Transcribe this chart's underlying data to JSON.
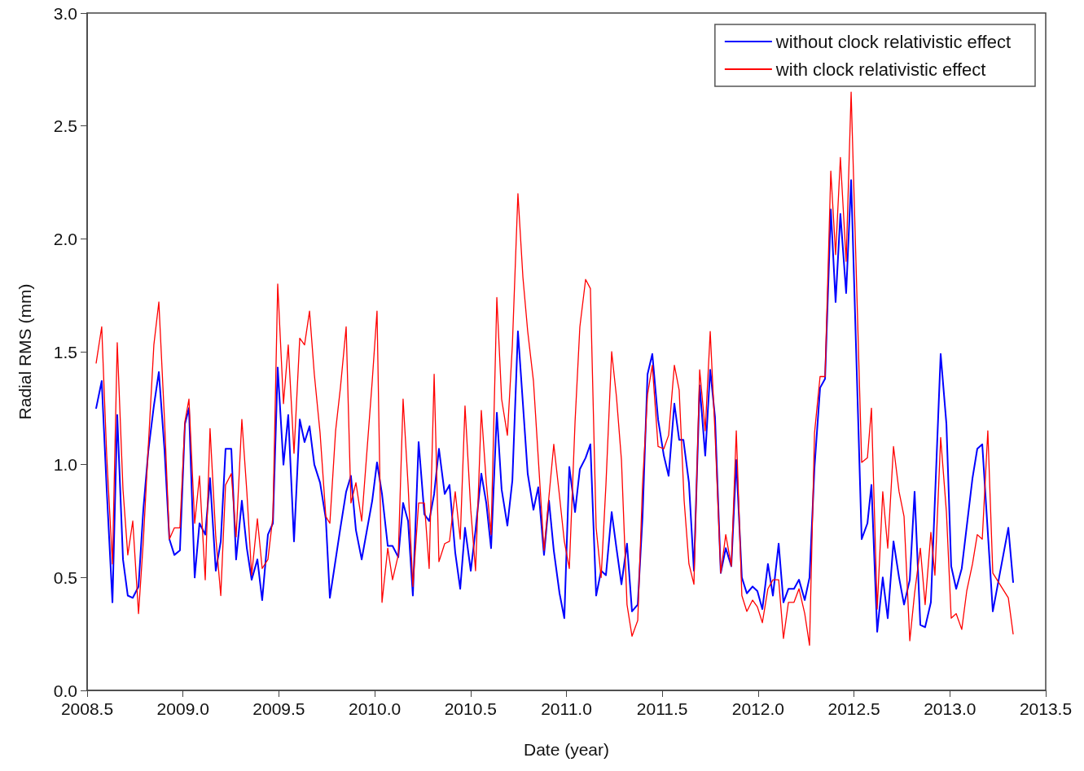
{
  "chart_data": {
    "type": "line",
    "xlabel": "Date (year)",
    "ylabel": "Radial RMS (mm)",
    "xlim": [
      2008.5,
      2013.5
    ],
    "xticks": [
      2008.5,
      {
        "value": 2009,
        "label": "2009.0"
      },
      2009.5,
      {
        "value": 2010,
        "label": "2010.0"
      },
      2010.5,
      {
        "value": 2011,
        "label": "2011.0"
      },
      2011.5,
      {
        "value": 2012,
        "label": "2012.0"
      },
      2012.5,
      {
        "value": 2013,
        "label": "2013.0"
      },
      2013.5
    ],
    "ylim": [
      0,
      3
    ],
    "yticks": [
      {
        "value": 0,
        "label": "0.0"
      },
      0.5,
      {
        "value": 1,
        "label": "1.0"
      },
      1.5,
      {
        "value": 2,
        "label": "2.0"
      },
      2.5,
      {
        "value": 3,
        "label": "3.0"
      }
    ],
    "grid": false,
    "legend": "top right",
    "marker": "none",
    "line_style": "solid",
    "series": [
      {
        "name": "without clock relativistic effect",
        "color": "#0000ff",
        "x": [
          2008.547,
          2008.576,
          2008.602,
          2008.632,
          2008.657,
          2008.687,
          2008.712,
          2008.738,
          2008.768,
          2008.793,
          2008.819,
          2008.848,
          2008.874,
          2008.904,
          2008.929,
          2008.955,
          2008.984,
          2009.01,
          2009.031,
          2009.061,
          2009.086,
          2009.116,
          2009.141,
          2009.171,
          2009.197,
          2009.222,
          2009.252,
          2009.277,
          2009.307,
          2009.333,
          2009.358,
          2009.388,
          2009.413,
          2009.443,
          2009.469,
          2009.494,
          2009.524,
          2009.549,
          2009.579,
          2009.609,
          2009.634,
          2009.66,
          2009.685,
          2009.715,
          2009.745,
          2009.766,
          2009.821,
          2009.851,
          2009.876,
          2009.902,
          2009.932,
          2009.987,
          2010.012,
          2010.038,
          2010.068,
          2010.093,
          2010.123,
          2010.148,
          2010.174,
          2010.199,
          2010.229,
          2010.259,
          2010.284,
          2010.31,
          2010.335,
          2010.365,
          2010.39,
          2010.42,
          2010.446,
          2010.471,
          2010.501,
          2010.526,
          2010.556,
          2010.582,
          2010.607,
          2010.637,
          2010.662,
          2010.692,
          2010.718,
          2010.747,
          2010.773,
          2010.798,
          2010.828,
          2010.853,
          2010.883,
          2010.909,
          2010.934,
          2010.964,
          2010.989,
          2011.015,
          2011.045,
          2011.07,
          2011.1,
          2011.125,
          2011.155,
          2011.181,
          2011.206,
          2011.236,
          2011.261,
          2011.287,
          2011.316,
          2011.342,
          2011.372,
          2011.397,
          2011.423,
          2011.448,
          2011.478,
          2011.508,
          2011.533,
          2011.563,
          2011.588,
          2011.61,
          2011.639,
          2011.665,
          2011.695,
          2011.724,
          2011.75,
          2011.775,
          2011.805,
          2011.831,
          2011.86,
          2011.886,
          2011.915,
          2011.941,
          2011.971,
          2011.996,
          2012.022,
          2012.051,
          2012.077,
          2012.107,
          2012.132,
          2012.158,
          2012.187,
          2012.213,
          2012.243,
          2012.268,
          2012.294,
          2012.323,
          2012.349,
          2012.379,
          2012.404,
          2012.429,
          2012.459,
          2012.485,
          2012.54,
          2012.57,
          2012.591,
          2012.621,
          2012.65,
          2012.676,
          2012.706,
          2012.735,
          2012.761,
          2012.791,
          2012.816,
          2012.846,
          2012.871,
          2012.901,
          2012.952,
          2012.982,
          2013.007,
          2013.033,
          2013.062,
          2013.118,
          2013.143,
          2013.169,
          2013.224,
          2013.305,
          2013.33
        ],
        "values": [
          1.25,
          1.37,
          0.89,
          0.39,
          1.22,
          0.58,
          0.42,
          0.41,
          0.46,
          0.8,
          1.06,
          1.26,
          1.41,
          1.06,
          0.67,
          0.6,
          0.62,
          1.18,
          1.25,
          0.5,
          0.74,
          0.69,
          0.94,
          0.53,
          0.66,
          1.07,
          1.07,
          0.58,
          0.84,
          0.63,
          0.49,
          0.58,
          0.4,
          0.69,
          0.74,
          1.43,
          1.0,
          1.22,
          0.66,
          1.2,
          1.1,
          1.17,
          1.0,
          0.92,
          0.76,
          0.41,
          0.72,
          0.88,
          0.95,
          0.71,
          0.58,
          0.84,
          1.01,
          0.87,
          0.64,
          0.64,
          0.59,
          0.83,
          0.75,
          0.42,
          1.1,
          0.78,
          0.75,
          0.87,
          1.07,
          0.87,
          0.91,
          0.61,
          0.45,
          0.72,
          0.53,
          0.71,
          0.96,
          0.83,
          0.63,
          1.23,
          0.89,
          0.73,
          0.93,
          1.59,
          1.27,
          0.96,
          0.8,
          0.9,
          0.6,
          0.84,
          0.62,
          0.43,
          0.32,
          0.99,
          0.79,
          0.98,
          1.03,
          1.09,
          0.42,
          0.53,
          0.51,
          0.79,
          0.63,
          0.47,
          0.65,
          0.35,
          0.38,
          0.77,
          1.4,
          1.49,
          1.2,
          1.04,
          0.95,
          1.27,
          1.11,
          1.11,
          0.92,
          0.53,
          1.35,
          1.04,
          1.42,
          1.21,
          0.52,
          0.63,
          0.55,
          1.02,
          0.5,
          0.43,
          0.46,
          0.44,
          0.36,
          0.56,
          0.42,
          0.65,
          0.39,
          0.45,
          0.45,
          0.49,
          0.4,
          0.5,
          0.99,
          1.34,
          1.38,
          2.13,
          1.72,
          2.11,
          1.76,
          2.26,
          0.67,
          0.74,
          0.91,
          0.26,
          0.5,
          0.32,
          0.66,
          0.5,
          0.38,
          0.49,
          0.88,
          0.29,
          0.28,
          0.39,
          1.49,
          1.18,
          0.55,
          0.45,
          0.54,
          0.94,
          1.07,
          1.09,
          0.35,
          0.72,
          0.48
        ]
      },
      {
        "name": "with clock relativistic effect",
        "color": "#ff0000",
        "x": [
          2008.547,
          2008.576,
          2008.602,
          2008.632,
          2008.657,
          2008.687,
          2008.712,
          2008.738,
          2008.768,
          2008.793,
          2008.819,
          2008.848,
          2008.874,
          2008.904,
          2008.929,
          2008.955,
          2008.984,
          2009.01,
          2009.031,
          2009.061,
          2009.086,
          2009.116,
          2009.141,
          2009.171,
          2009.197,
          2009.222,
          2009.252,
          2009.277,
          2009.307,
          2009.333,
          2009.358,
          2009.388,
          2009.413,
          2009.443,
          2009.469,
          2009.494,
          2009.524,
          2009.549,
          2009.579,
          2009.609,
          2009.634,
          2009.66,
          2009.685,
          2009.715,
          2009.745,
          2009.766,
          2009.796,
          2009.821,
          2009.851,
          2009.876,
          2009.902,
          2009.932,
          2009.987,
          2010.012,
          2010.038,
          2010.068,
          2010.093,
          2010.123,
          2010.148,
          2010.174,
          2010.199,
          2010.229,
          2010.259,
          2010.284,
          2010.31,
          2010.335,
          2010.365,
          2010.39,
          2010.42,
          2010.446,
          2010.471,
          2010.501,
          2010.526,
          2010.556,
          2010.582,
          2010.607,
          2010.637,
          2010.662,
          2010.692,
          2010.718,
          2010.747,
          2010.773,
          2010.798,
          2010.828,
          2010.853,
          2010.883,
          2010.909,
          2010.934,
          2010.964,
          2010.989,
          2011.015,
          2011.045,
          2011.07,
          2011.1,
          2011.125,
          2011.155,
          2011.181,
          2011.206,
          2011.236,
          2011.261,
          2011.287,
          2011.316,
          2011.342,
          2011.372,
          2011.397,
          2011.423,
          2011.448,
          2011.478,
          2011.508,
          2011.533,
          2011.563,
          2011.588,
          2011.614,
          2011.639,
          2011.665,
          2011.695,
          2011.724,
          2011.75,
          2011.775,
          2011.805,
          2011.831,
          2011.86,
          2011.886,
          2011.915,
          2011.941,
          2011.971,
          2011.996,
          2012.022,
          2012.051,
          2012.077,
          2012.107,
          2012.132,
          2012.158,
          2012.187,
          2012.213,
          2012.243,
          2012.268,
          2012.294,
          2012.323,
          2012.349,
          2012.379,
          2012.404,
          2012.429,
          2012.459,
          2012.485,
          2012.54,
          2012.57,
          2012.591,
          2012.621,
          2012.65,
          2012.676,
          2012.706,
          2012.735,
          2012.761,
          2012.791,
          2012.816,
          2012.846,
          2012.871,
          2012.901,
          2012.922,
          2012.952,
          2012.982,
          2013.007,
          2013.033,
          2013.062,
          2013.088,
          2013.118,
          2013.143,
          2013.169,
          2013.198,
          2013.224,
          2013.305,
          2013.33
        ],
        "values": [
          1.45,
          1.61,
          1.04,
          0.56,
          1.54,
          0.89,
          0.6,
          0.75,
          0.34,
          0.66,
          1.08,
          1.53,
          1.72,
          1.19,
          0.67,
          0.72,
          0.72,
          1.19,
          1.29,
          0.74,
          0.95,
          0.49,
          1.16,
          0.68,
          0.42,
          0.91,
          0.96,
          0.68,
          1.2,
          0.88,
          0.51,
          0.76,
          0.54,
          0.58,
          0.77,
          1.8,
          1.27,
          1.53,
          1.05,
          1.56,
          1.53,
          1.68,
          1.4,
          1.14,
          0.77,
          0.74,
          1.15,
          1.34,
          1.61,
          0.83,
          0.92,
          0.75,
          1.37,
          1.68,
          0.39,
          0.63,
          0.49,
          0.6,
          1.29,
          0.91,
          0.46,
          0.83,
          0.83,
          0.54,
          1.4,
          0.57,
          0.65,
          0.66,
          0.88,
          0.67,
          1.26,
          0.8,
          0.53,
          1.24,
          0.92,
          0.69,
          1.74,
          1.29,
          1.13,
          1.53,
          2.2,
          1.83,
          1.59,
          1.37,
          1.03,
          0.62,
          0.86,
          1.09,
          0.86,
          0.66,
          0.54,
          1.19,
          1.61,
          1.82,
          1.78,
          0.72,
          0.5,
          0.91,
          1.5,
          1.3,
          1.02,
          0.38,
          0.24,
          0.31,
          0.91,
          1.31,
          1.44,
          1.08,
          1.07,
          1.13,
          1.44,
          1.33,
          0.84,
          0.56,
          0.47,
          1.42,
          1.15,
          1.59,
          1.14,
          0.52,
          0.69,
          0.55,
          1.15,
          0.42,
          0.35,
          0.4,
          0.37,
          0.3,
          0.45,
          0.49,
          0.49,
          0.23,
          0.39,
          0.39,
          0.45,
          0.34,
          0.2,
          1.14,
          1.39,
          1.39,
          2.3,
          1.93,
          2.36,
          1.9,
          2.65,
          1.01,
          1.03,
          1.25,
          0.36,
          0.88,
          0.63,
          1.08,
          0.88,
          0.77,
          0.22,
          0.43,
          0.63,
          0.38,
          0.7,
          0.51,
          1.12,
          0.79,
          0.32,
          0.34,
          0.27,
          0.44,
          0.56,
          0.69,
          0.67,
          1.15,
          0.52,
          0.41,
          0.25
        ]
      }
    ]
  }
}
